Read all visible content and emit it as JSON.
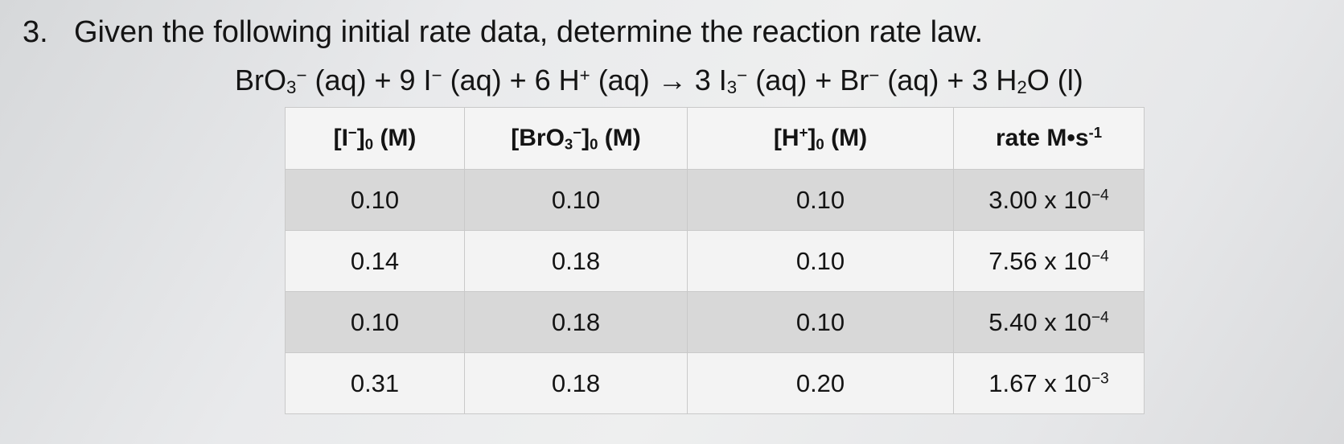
{
  "question": {
    "number": "3.",
    "text": "Given the following initial rate data, determine the reaction rate law."
  },
  "equation": {
    "bro3": "BrO",
    "bro3_sub": "3",
    "bro3_sup": "−",
    "aq1": " (aq) + 9 I",
    "i_sup": "−",
    "aq2": " (aq) + 6 H",
    "h_sup": "+",
    "aq3": " (aq) → 3 I",
    "i3_sub": "3",
    "i3_sup": "−",
    "aq4": " (aq) + Br",
    "br_sup": "−",
    "aq5": " (aq) + 3 H",
    "h2o_sub": "2",
    "tail": "O (l)"
  },
  "table": {
    "headers": {
      "c1_a": "[I",
      "c1_sup": "−",
      "c1_b": "]",
      "c1_sub": "0",
      "c1_c": " (M)",
      "c2_a": "[BrO",
      "c2_sub1": "3",
      "c2_sup": "−",
      "c2_b": "]",
      "c2_sub2": "0",
      "c2_c": " (M)",
      "c3_a": "[H",
      "c3_sup": "+",
      "c3_b": "]",
      "c3_sub": "0",
      "c3_c": " (M)",
      "c4_a": "rate M•s",
      "c4_sup": "-1"
    },
    "rows": [
      {
        "iodide": "0.10",
        "bromate": "0.10",
        "hydrogen": "0.10",
        "rate_mant": "3.00 x 10",
        "rate_exp": "−4"
      },
      {
        "iodide": "0.14",
        "bromate": "0.18",
        "hydrogen": "0.10",
        "rate_mant": "7.56 x 10",
        "rate_exp": "−4"
      },
      {
        "iodide": "0.10",
        "bromate": "0.18",
        "hydrogen": "0.10",
        "rate_mant": "5.40 x 10",
        "rate_exp": "−4"
      },
      {
        "iodide": "0.31",
        "bromate": "0.18",
        "hydrogen": "0.20",
        "rate_mant": "1.67 x 10",
        "rate_exp": "−3"
      }
    ]
  }
}
